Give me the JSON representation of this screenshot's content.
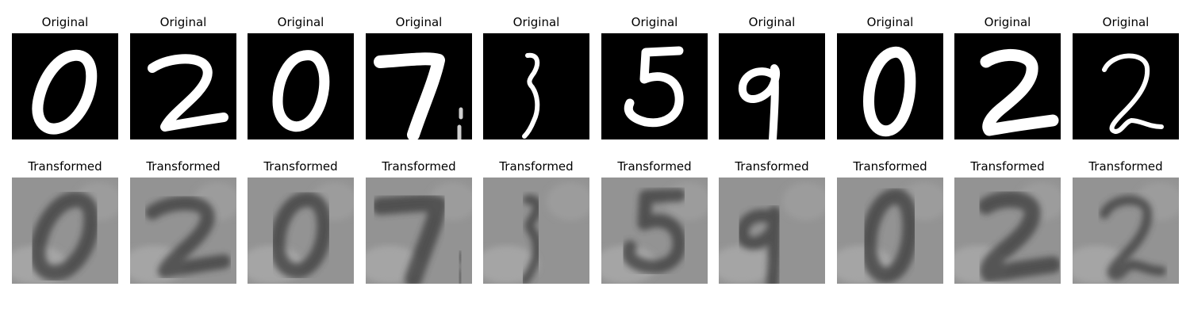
{
  "row_titles": {
    "original": "Original",
    "transformed": "Transformed"
  },
  "panels": [
    {
      "digit_icon": "digit-0-icon"
    },
    {
      "digit_icon": "digit-2-icon"
    },
    {
      "digit_icon": "digit-0-icon"
    },
    {
      "digit_icon": "digit-7-icon"
    },
    {
      "digit_icon": "digit-3-icon"
    },
    {
      "digit_icon": "digit-5-icon"
    },
    {
      "digit_icon": "digit-9-icon"
    },
    {
      "digit_icon": "digit-0-icon"
    },
    {
      "digit_icon": "digit-2-icon"
    },
    {
      "digit_icon": "digit-2-icon"
    }
  ],
  "colors": {
    "original_background": "#000000",
    "original_stroke": "#ffffff",
    "transformed_background": "#8f8f8f",
    "transformed_stroke": "#3a3a3a"
  }
}
